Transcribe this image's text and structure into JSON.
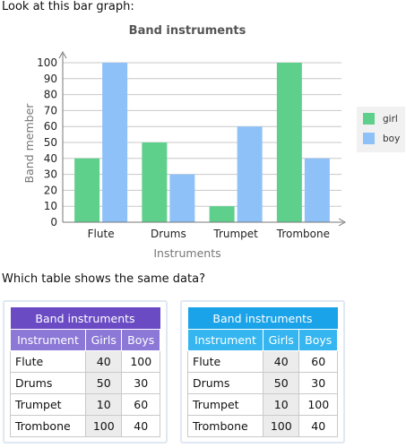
{
  "question": {
    "intro": "Look at this bar graph:",
    "prompt": "Which table shows the same data?"
  },
  "chart_data": {
    "type": "bar",
    "title": "Band instruments",
    "xlabel": "Instruments",
    "ylabel": "Band member",
    "categories": [
      "Flute",
      "Drums",
      "Trumpet",
      "Trombone"
    ],
    "series": [
      {
        "name": "girl",
        "values": [
          40,
          50,
          10,
          100
        ],
        "color": "#5ed08c"
      },
      {
        "name": "boy",
        "values": [
          100,
          30,
          60,
          40
        ],
        "color": "#8ec1f7"
      }
    ],
    "ylim": [
      0,
      100
    ],
    "yticks": [
      0,
      10,
      20,
      30,
      40,
      50,
      60,
      70,
      80,
      90,
      100
    ],
    "grid": true,
    "legend_position": "right"
  },
  "choices": [
    {
      "caption": "Band instruments",
      "headers": [
        "Instrument",
        "Girls",
        "Boys"
      ],
      "rows": [
        {
          "instrument": "Flute",
          "girls": "40",
          "boys": "100"
        },
        {
          "instrument": "Drums",
          "girls": "50",
          "boys": "30"
        },
        {
          "instrument": "Trumpet",
          "girls": "10",
          "boys": "60"
        },
        {
          "instrument": "Trombone",
          "girls": "100",
          "boys": "40"
        }
      ],
      "accent": "#6a4bc4"
    },
    {
      "caption": "Band instruments",
      "headers": [
        "Instrument",
        "Girls",
        "Boys"
      ],
      "rows": [
        {
          "instrument": "Flute",
          "girls": "40",
          "boys": "60"
        },
        {
          "instrument": "Drums",
          "girls": "50",
          "boys": "30"
        },
        {
          "instrument": "Trumpet",
          "girls": "10",
          "boys": "100"
        },
        {
          "instrument": "Trombone",
          "girls": "100",
          "boys": "40"
        }
      ],
      "accent": "#1aa3e8"
    }
  ]
}
